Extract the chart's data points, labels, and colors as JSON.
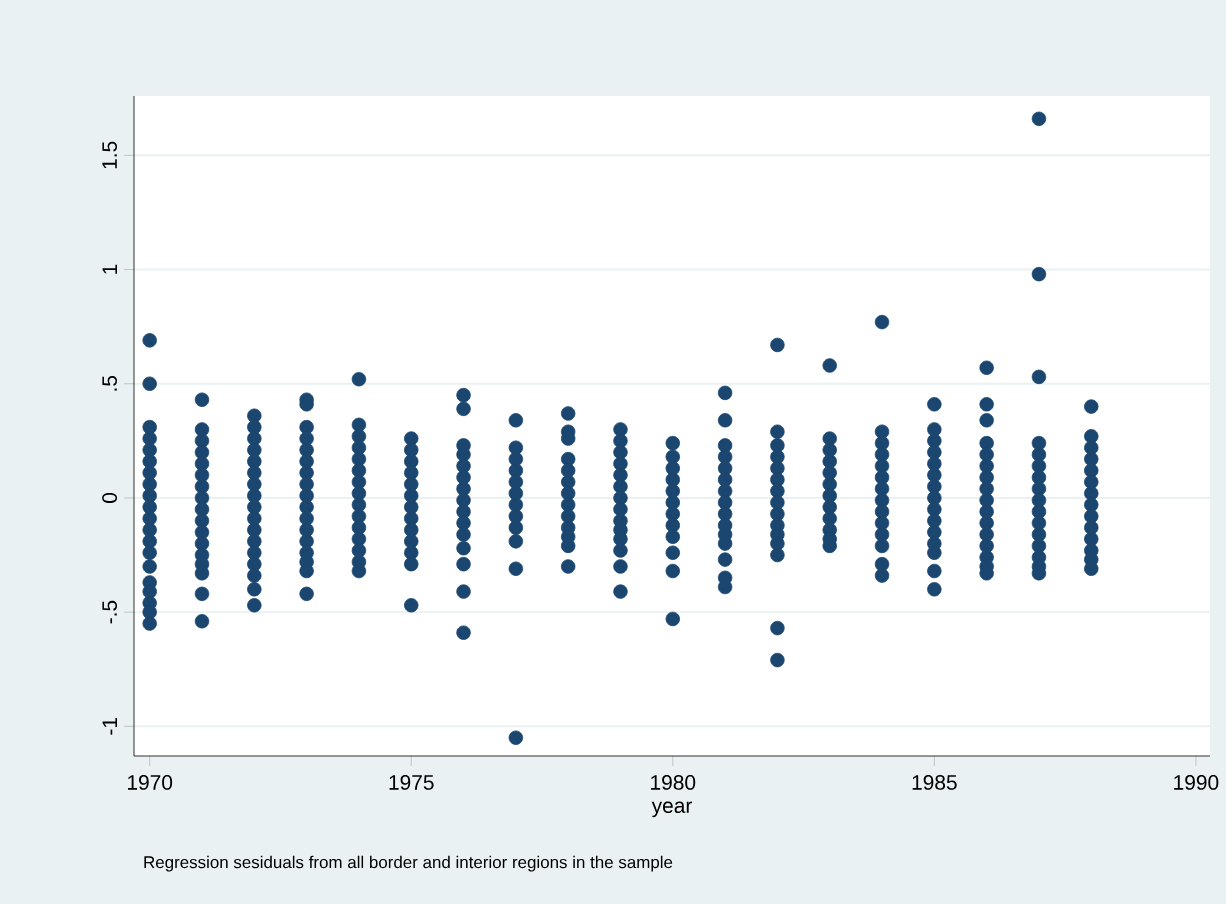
{
  "chart_data": {
    "type": "scatter",
    "xlabel": "year",
    "annotations": [
      "Regression sesiduals from all border and interior regions in the sample"
    ],
    "xlim": [
      1969.7,
      1990.27
    ],
    "ylim": [
      -1.13,
      1.76
    ],
    "xticks": [
      1970,
      1975,
      1980,
      1985,
      1990
    ],
    "yticks": [
      -1,
      {
        "value": -0.5,
        "label": "-.5"
      },
      0,
      {
        "value": 0.5,
        "label": ".5"
      },
      1,
      1.5
    ],
    "grid": "y",
    "marker": "circle",
    "series": [
      {
        "color": "#1b466f",
        "x": [
          1970,
          1970,
          1970,
          1970,
          1970,
          1970,
          1970,
          1970,
          1970,
          1970,
          1970,
          1970,
          1970,
          1970,
          1970,
          1970,
          1970,
          1970,
          1970,
          1970
        ],
        "values": [
          0.69,
          0.5,
          0.31,
          0.26,
          0.21,
          0.16,
          0.11,
          0.06,
          0.01,
          -0.04,
          -0.09,
          -0.14,
          -0.19,
          -0.24,
          -0.3,
          -0.37,
          -0.41,
          -0.46,
          -0.5,
          -0.55
        ]
      },
      {
        "color": "#1b466f",
        "x": [
          1971,
          1971,
          1971,
          1971,
          1971,
          1971,
          1971,
          1971,
          1971,
          1971,
          1971,
          1971,
          1971,
          1971,
          1971,
          1971,
          1971
        ],
        "values": [
          0.43,
          0.3,
          0.25,
          0.2,
          0.15,
          0.1,
          0.05,
          0,
          -0.05,
          -0.1,
          -0.15,
          -0.2,
          -0.25,
          -0.29,
          -0.33,
          -0.42,
          -0.54
        ]
      },
      {
        "color": "#1b466f",
        "x": [
          1972,
          1972,
          1972,
          1972,
          1972,
          1972,
          1972,
          1972,
          1972,
          1972,
          1972,
          1972,
          1972,
          1972,
          1972,
          1972,
          1972
        ],
        "values": [
          0.36,
          0.31,
          0.26,
          0.21,
          0.16,
          0.11,
          0.06,
          0.01,
          -0.04,
          -0.09,
          -0.14,
          -0.19,
          -0.24,
          -0.29,
          -0.34,
          -0.4,
          -0.47
        ]
      },
      {
        "color": "#1b466f",
        "x": [
          1973,
          1973,
          1973,
          1973,
          1973,
          1973,
          1973,
          1973,
          1973,
          1973,
          1973,
          1973,
          1973,
          1973,
          1973,
          1973,
          1973
        ],
        "values": [
          0.43,
          0.41,
          0.31,
          0.26,
          0.21,
          0.16,
          0.11,
          0.06,
          0.01,
          -0.04,
          -0.09,
          -0.14,
          -0.19,
          -0.24,
          -0.28,
          -0.32,
          -0.42
        ]
      },
      {
        "color": "#1b466f",
        "x": [
          1974,
          1974,
          1974,
          1974,
          1974,
          1974,
          1974,
          1974,
          1974,
          1974,
          1974,
          1974,
          1974,
          1974,
          1974
        ],
        "values": [
          0.52,
          0.32,
          0.27,
          0.22,
          0.17,
          0.12,
          0.07,
          0.02,
          -0.03,
          -0.08,
          -0.13,
          -0.18,
          -0.23,
          -0.28,
          -0.32
        ]
      },
      {
        "color": "#1b466f",
        "x": [
          1975,
          1975,
          1975,
          1975,
          1975,
          1975,
          1975,
          1975,
          1975,
          1975,
          1975,
          1975,
          1975
        ],
        "values": [
          0.26,
          0.21,
          0.16,
          0.11,
          0.06,
          0.01,
          -0.04,
          -0.09,
          -0.14,
          -0.19,
          -0.24,
          -0.29,
          -0.47
        ]
      },
      {
        "color": "#1b466f",
        "x": [
          1976,
          1976,
          1976,
          1976,
          1976,
          1976,
          1976,
          1976,
          1976,
          1976,
          1976,
          1976,
          1976,
          1976,
          1976
        ],
        "values": [
          0.45,
          0.39,
          0.23,
          0.19,
          0.14,
          0.09,
          0.04,
          -0.01,
          -0.06,
          -0.11,
          -0.16,
          -0.22,
          -0.29,
          -0.41,
          -0.59
        ]
      },
      {
        "color": "#1b466f",
        "x": [
          1977,
          1977,
          1977,
          1977,
          1977,
          1977,
          1977,
          1977,
          1977,
          1977,
          1977,
          1977
        ],
        "values": [
          0.34,
          0.22,
          0.17,
          0.12,
          0.07,
          0.02,
          -0.03,
          -0.08,
          -0.13,
          -0.19,
          -0.31,
          -1.05
        ]
      },
      {
        "color": "#1b466f",
        "x": [
          1978,
          1978,
          1978,
          1978,
          1978,
          1978,
          1978,
          1978,
          1978,
          1978,
          1978,
          1978,
          1978
        ],
        "values": [
          0.37,
          0.29,
          0.26,
          0.17,
          0.12,
          0.07,
          0.02,
          -0.03,
          -0.08,
          -0.13,
          -0.17,
          -0.21,
          -0.3
        ]
      },
      {
        "color": "#1b466f",
        "x": [
          1979,
          1979,
          1979,
          1979,
          1979,
          1979,
          1979,
          1979,
          1979,
          1979,
          1979,
          1979,
          1979,
          1979
        ],
        "values": [
          0.3,
          0.25,
          0.2,
          0.15,
          0.1,
          0.05,
          0,
          -0.05,
          -0.1,
          -0.14,
          -0.18,
          -0.23,
          -0.3,
          -0.41
        ]
      },
      {
        "color": "#1b466f",
        "x": [
          1980,
          1980,
          1980,
          1980,
          1980,
          1980,
          1980,
          1980,
          1980,
          1980,
          1980,
          1980
        ],
        "values": [
          0.24,
          0.18,
          0.13,
          0.08,
          0.03,
          -0.02,
          -0.07,
          -0.12,
          -0.17,
          -0.24,
          -0.32,
          -0.53
        ]
      },
      {
        "color": "#1b466f",
        "x": [
          1981,
          1981,
          1981,
          1981,
          1981,
          1981,
          1981,
          1981,
          1981,
          1981,
          1981,
          1981,
          1981,
          1981,
          1981
        ],
        "values": [
          0.46,
          0.34,
          0.23,
          0.18,
          0.13,
          0.08,
          0.03,
          -0.02,
          -0.07,
          -0.12,
          -0.16,
          -0.2,
          -0.27,
          -0.35,
          -0.39
        ]
      },
      {
        "color": "#1b466f",
        "x": [
          1982,
          1982,
          1982,
          1982,
          1982,
          1982,
          1982,
          1982,
          1982,
          1982,
          1982,
          1982,
          1982,
          1982,
          1982
        ],
        "values": [
          0.67,
          0.29,
          0.23,
          0.18,
          0.13,
          0.08,
          0.03,
          -0.02,
          -0.07,
          -0.12,
          -0.16,
          -0.2,
          -0.25,
          -0.57,
          -0.71
        ]
      },
      {
        "color": "#1b466f",
        "x": [
          1983,
          1983,
          1983,
          1983,
          1983,
          1983,
          1983,
          1983,
          1983,
          1983,
          1983,
          1983
        ],
        "values": [
          0.58,
          0.26,
          0.21,
          0.16,
          0.11,
          0.06,
          0.01,
          -0.04,
          -0.09,
          -0.14,
          -0.18,
          -0.21
        ]
      },
      {
        "color": "#1b466f",
        "x": [
          1984,
          1984,
          1984,
          1984,
          1984,
          1984,
          1984,
          1984,
          1984,
          1984,
          1984,
          1984,
          1984,
          1984
        ],
        "values": [
          0.77,
          0.29,
          0.24,
          0.19,
          0.14,
          0.09,
          0.04,
          -0.01,
          -0.06,
          -0.11,
          -0.16,
          -0.21,
          -0.29,
          -0.34
        ]
      },
      {
        "color": "#1b466f",
        "x": [
          1985,
          1985,
          1985,
          1985,
          1985,
          1985,
          1985,
          1985,
          1985,
          1985,
          1985,
          1985,
          1985,
          1985,
          1985
        ],
        "values": [
          0.41,
          0.3,
          0.25,
          0.2,
          0.15,
          0.1,
          0.05,
          0,
          -0.05,
          -0.1,
          -0.15,
          -0.2,
          -0.24,
          -0.32,
          -0.4
        ]
      },
      {
        "color": "#1b466f",
        "x": [
          1986,
          1986,
          1986,
          1986,
          1986,
          1986,
          1986,
          1986,
          1986,
          1986,
          1986,
          1986,
          1986,
          1986,
          1986,
          1986
        ],
        "values": [
          0.57,
          0.41,
          0.34,
          0.24,
          0.19,
          0.14,
          0.09,
          0.04,
          -0.01,
          -0.06,
          -0.11,
          -0.16,
          -0.21,
          -0.26,
          -0.3,
          -0.33
        ]
      },
      {
        "color": "#1b466f",
        "x": [
          1987,
          1987,
          1987,
          1987,
          1987,
          1987,
          1987,
          1987,
          1987,
          1987,
          1987,
          1987,
          1987,
          1987,
          1987,
          1987
        ],
        "values": [
          1.66,
          0.98,
          0.53,
          0.24,
          0.19,
          0.14,
          0.09,
          0.04,
          -0.01,
          -0.06,
          -0.11,
          -0.16,
          -0.21,
          -0.26,
          -0.3,
          -0.33
        ]
      },
      {
        "color": "#1b466f",
        "x": [
          1988,
          1988,
          1988,
          1988,
          1988,
          1988,
          1988,
          1988,
          1988,
          1988,
          1988,
          1988,
          1988,
          1988
        ],
        "values": [
          0.4,
          0.27,
          0.22,
          0.17,
          0.12,
          0.07,
          0.02,
          -0.03,
          -0.08,
          -0.13,
          -0.18,
          -0.23,
          -0.27,
          -0.31
        ]
      }
    ]
  }
}
